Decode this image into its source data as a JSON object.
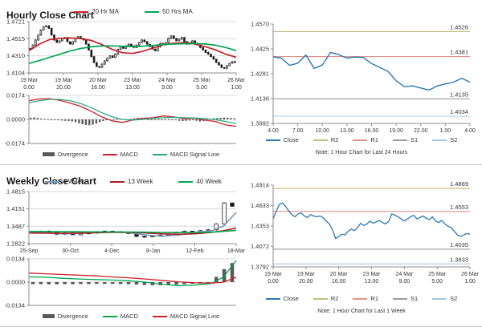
{
  "legends": {
    "hourly_ma": [
      {
        "label": "20 Hr MA",
        "color": "#cc2027",
        "shape": "line"
      },
      {
        "label": "50 Hrs MA",
        "color": "#00a651",
        "shape": "line"
      }
    ],
    "hourly_macd": [
      {
        "label": "Divergence",
        "color": "#595959",
        "shape": "bar"
      },
      {
        "label": "MACD",
        "color": "#cc2027",
        "shape": "line"
      },
      {
        "label": "MACD Signal Line",
        "color": "#2aa885",
        "shape": "line"
      }
    ],
    "hourly_pivot": [
      {
        "label": "Close",
        "color": "#2878b8",
        "shape": "line"
      },
      {
        "label": "R2",
        "color": "#c5b97b",
        "shape": "line"
      },
      {
        "label": "R1",
        "color": "#e0938a",
        "shape": "line"
      },
      {
        "label": "S1",
        "color": "#9b9b9b",
        "shape": "line"
      },
      {
        "label": "S2",
        "color": "#a3c7dd",
        "shape": "line"
      }
    ],
    "weekly_ma": [
      {
        "label": "4 Week",
        "color": "#7b9cc0",
        "shape": "line"
      },
      {
        "label": "13 Week",
        "color": "#b01b20",
        "shape": "line"
      },
      {
        "label": "40 Week",
        "color": "#00a651",
        "shape": "line"
      }
    ],
    "weekly_macd": [
      {
        "label": "Divergence",
        "color": "#595959",
        "shape": "bar"
      },
      {
        "label": "MACD",
        "color": "#00a651",
        "shape": "line"
      },
      {
        "label": "MACD Signal Line",
        "color": "#cc2027",
        "shape": "line"
      }
    ],
    "weekly_pivot": [
      {
        "label": "Close",
        "color": "#2878b8",
        "shape": "line"
      },
      {
        "label": "R2",
        "color": "#c5b97b",
        "shape": "line"
      },
      {
        "label": "R1",
        "color": "#e0938a",
        "shape": "line"
      },
      {
        "label": "S1",
        "color": "#9b9b9b",
        "shape": "line"
      },
      {
        "label": "S2",
        "color": "#a3c7dd",
        "shape": "line"
      }
    ]
  },
  "chart_data": [
    {
      "id": "hourly-price",
      "type": "candlestick",
      "title": "Hourly Close Chart",
      "xlabel": "",
      "ylabel": "",
      "ylim": [
        1.4104,
        1.4721
      ],
      "yticks": [
        "1.4721",
        "1.4515",
        "1.4310",
        "1.4104"
      ],
      "grid": true,
      "xticklabels": [
        [
          "19 Mar",
          "0.00"
        ],
        [
          "19 Mar",
          "20.00"
        ],
        [
          "20 Mar",
          "16.00"
        ],
        [
          "23 Mar",
          "13.00"
        ],
        [
          "24 Mar",
          "9.00"
        ],
        [
          "25 Mar",
          "5.00"
        ],
        [
          "26 Mar",
          "1.00"
        ]
      ],
      "candle_closes": [
        1.44,
        1.444,
        1.45,
        1.456,
        1.462,
        1.466,
        1.467,
        1.464,
        1.456,
        1.45,
        1.447,
        1.449,
        1.452,
        1.453,
        1.448,
        1.445,
        1.448,
        1.452,
        1.454,
        1.452,
        1.45,
        1.445,
        1.438,
        1.43,
        1.423,
        1.418,
        1.417,
        1.421,
        1.425,
        1.428,
        1.431,
        1.429,
        1.433,
        1.439,
        1.442,
        1.44,
        1.443,
        1.445,
        1.443,
        1.441,
        1.444,
        1.447,
        1.45,
        1.448,
        1.445,
        1.442,
        1.439,
        1.437,
        1.442,
        1.446,
        1.444,
        1.447,
        1.452,
        1.455,
        1.452,
        1.449,
        1.451,
        1.453,
        1.448,
        1.445,
        1.447,
        1.449,
        1.446,
        1.444,
        1.441,
        1.438,
        1.435,
        1.433,
        1.43,
        1.427,
        1.423,
        1.42,
        1.417,
        1.416,
        1.419,
        1.422,
        1.424,
        1.423
      ],
      "series": [
        {
          "name": "20 Hr MA",
          "color": "#cc2027",
          "w": 1.7,
          "x": [
            0,
            0.05,
            0.1,
            0.15,
            0.2,
            0.25,
            0.3,
            0.35,
            0.4,
            0.45,
            0.5,
            0.55,
            0.6,
            0.65,
            0.7,
            0.75,
            0.8,
            0.85,
            0.9,
            0.95,
            1
          ],
          "y": [
            1.437,
            1.445,
            1.4505,
            1.452,
            1.4525,
            1.4518,
            1.4495,
            1.4448,
            1.439,
            1.4348,
            1.4338,
            1.4365,
            1.4405,
            1.4445,
            1.4462,
            1.4468,
            1.4452,
            1.442,
            1.4382,
            1.433,
            1.4292
          ]
        },
        {
          "name": "50 Hrs MA",
          "color": "#00a651",
          "w": 1.7,
          "x": [
            0,
            0.05,
            0.1,
            0.15,
            0.2,
            0.25,
            0.3,
            0.35,
            0.4,
            0.45,
            0.5,
            0.55,
            0.6,
            0.65,
            0.7,
            0.75,
            0.8,
            0.85,
            0.9,
            0.95,
            1
          ],
          "y": [
            1.4218,
            1.4252,
            1.4292,
            1.433,
            1.4368,
            1.4398,
            1.4418,
            1.4428,
            1.443,
            1.4425,
            1.442,
            1.4426,
            1.4436,
            1.4446,
            1.4452,
            1.4456,
            1.4458,
            1.4452,
            1.4438,
            1.441,
            1.4372
          ]
        }
      ]
    },
    {
      "id": "hourly-macd",
      "type": "macd",
      "ylim": [
        -0.0174,
        0.0174
      ],
      "yticks": [
        "0.0174",
        "0.0000",
        "-0.0174"
      ],
      "grid": true,
      "bar_color": "#595959",
      "bars": [
        0.0012,
        0.0015,
        0.001,
        0.0006,
        0.0004,
        0.0002,
        -0.0002,
        -0.0004,
        -0.0006,
        -0.0008,
        -0.001,
        -0.0012,
        -0.0015,
        -0.002,
        -0.0028,
        -0.0035,
        -0.004,
        -0.0042,
        -0.0038,
        -0.003,
        -0.002,
        -0.0012,
        -0.0006,
        -0.0002,
        0.0002,
        0.0004,
        0.0003,
        0.0001,
        -0.0002,
        0.0004,
        0.0008,
        0.0012,
        0.001,
        0.0006,
        0.0002,
        -0.0002,
        -0.0004,
        -0.0006,
        -0.0004,
        -0.0002,
        0.0,
        -0.0002,
        -0.0006,
        -0.001,
        -0.0012,
        -0.001,
        -0.0008,
        -0.0006,
        -0.001,
        -0.0015,
        -0.0012,
        -0.0008,
        0.0004,
        0.0008,
        0.001,
        0.0012,
        0.0014,
        0.0012,
        0.001,
        0.0008
      ],
      "series": [
        {
          "name": "MACD",
          "color": "#cc2027",
          "w": 1.3,
          "x": [
            0,
            0.05,
            0.1,
            0.15,
            0.2,
            0.25,
            0.3,
            0.35,
            0.4,
            0.45,
            0.5,
            0.55,
            0.6,
            0.65,
            0.7,
            0.75,
            0.8,
            0.85,
            0.9,
            0.95,
            1
          ],
          "y": [
            0.0135,
            0.0148,
            0.015,
            0.0138,
            0.0118,
            0.0095,
            0.006,
            0.002,
            -0.001,
            -0.0022,
            -0.0005,
            0.0008,
            0.0012,
            0.0025,
            0.0018,
            0.0005,
            0.0008,
            -0.0005,
            -0.0015,
            -0.004,
            -0.005
          ]
        },
        {
          "name": "MACD Signal Line",
          "color": "#2aa885",
          "w": 1.3,
          "x": [
            0,
            0.05,
            0.1,
            0.15,
            0.2,
            0.25,
            0.3,
            0.35,
            0.4,
            0.45,
            0.5,
            0.55,
            0.6,
            0.65,
            0.7,
            0.75,
            0.8,
            0.85,
            0.9,
            0.95,
            1
          ],
          "y": [
            0.012,
            0.0135,
            0.0145,
            0.0145,
            0.0135,
            0.0115,
            0.0085,
            0.005,
            0.002,
            0.0,
            -0.0005,
            0.0,
            0.0008,
            0.0012,
            0.0015,
            0.0012,
            0.001,
            0.0005,
            -0.0002,
            -0.0015,
            -0.003
          ]
        }
      ]
    },
    {
      "id": "hourly-pivot",
      "type": "line",
      "note": "Note: 1 Hour Chart for Last 24 Hours",
      "ylim": [
        1.3992,
        1.457
      ],
      "yticks": [
        "1.4570",
        "1.4425",
        "1.4281",
        "1.4136",
        "1.3992"
      ],
      "grid": false,
      "xticklabels": [
        "4.00",
        "7.00",
        "10.00",
        "13.00",
        "16.00",
        "19.00",
        "22.00",
        "1.00",
        "4.00"
      ],
      "levels": [
        {
          "name": "R2",
          "label": "1.4526",
          "value": 1.4526,
          "color": "#c5b97b"
        },
        {
          "name": "R1",
          "label": "1.4381",
          "value": 1.4381,
          "color": "#e0938a"
        },
        {
          "name": "S1",
          "label": "1.4135",
          "value": 1.4135,
          "color": "#9b9b9b"
        },
        {
          "name": "S2",
          "label": "1.4034",
          "value": 1.4034,
          "color": "#a3c7dd"
        }
      ],
      "series": [
        {
          "name": "Close",
          "color": "#2878b8",
          "w": 1.4,
          "y": [
            1.438,
            1.4372,
            1.433,
            1.4342,
            1.439,
            1.4312,
            1.4332,
            1.4405,
            1.4392,
            1.4372,
            1.4378,
            1.4375,
            1.434,
            1.4318,
            1.4295,
            1.424,
            1.4206,
            1.421,
            1.4198,
            1.4186,
            1.421,
            1.4222,
            1.4232,
            1.4255,
            1.4232
          ]
        }
      ]
    },
    {
      "id": "weekly-price",
      "type": "candlestick",
      "title": "Weekly Close Chart",
      "xlabel": "",
      "ylabel": "",
      "ylim": [
        1.2822,
        1.4815
      ],
      "yticks": [
        "1.4815",
        "1.4151",
        "1.3487",
        "1.2822"
      ],
      "grid": true,
      "xticklabels": [
        "25-Sep",
        "30-Oct",
        "4-Dec",
        "8-Jan",
        "12-Feb",
        "18-Mar"
      ],
      "candle_closes": [
        1.327,
        1.33,
        1.325,
        1.318,
        1.323,
        1.316,
        1.321,
        1.323,
        1.328,
        1.33,
        1.328,
        1.325,
        1.321,
        1.31,
        1.308,
        1.311,
        1.315,
        1.319,
        1.326,
        1.33,
        1.328,
        1.332,
        1.335,
        1.358,
        1.438,
        1.425
      ],
      "series": [
        {
          "name": "4 Week",
          "color": "#7b9cc0",
          "w": 1.6,
          "x": [
            0,
            0.08,
            0.16,
            0.24,
            0.32,
            0.4,
            0.48,
            0.56,
            0.64,
            0.72,
            0.8,
            0.88,
            0.94,
            1
          ],
          "y": [
            1.3265,
            1.324,
            1.3195,
            1.321,
            1.3255,
            1.327,
            1.3245,
            1.3155,
            1.3105,
            1.315,
            1.3255,
            1.331,
            1.35,
            1.402
          ]
        },
        {
          "name": "13 Week",
          "color": "#b01b20",
          "w": 1.6,
          "x": [
            0,
            0.08,
            0.16,
            0.24,
            0.32,
            0.4,
            0.48,
            0.56,
            0.64,
            0.72,
            0.8,
            0.88,
            0.94,
            1
          ],
          "y": [
            1.323,
            1.3225,
            1.322,
            1.3225,
            1.324,
            1.3255,
            1.325,
            1.323,
            1.32,
            1.318,
            1.32,
            1.325,
            1.332,
            1.342
          ]
        },
        {
          "name": "40 Week",
          "color": "#00a651",
          "w": 1.6,
          "x": [
            0,
            0.08,
            0.16,
            0.24,
            0.32,
            0.4,
            0.48,
            0.56,
            0.64,
            0.72,
            0.8,
            0.88,
            0.94,
            1
          ],
          "y": [
            1.329,
            1.3285,
            1.328,
            1.3275,
            1.327,
            1.327,
            1.3265,
            1.326,
            1.325,
            1.3245,
            1.325,
            1.326,
            1.329,
            1.333
          ]
        }
      ]
    },
    {
      "id": "weekly-macd",
      "type": "macd",
      "ylim": [
        -0.0134,
        0.0134
      ],
      "yticks": [
        "0.0134",
        "0.0000",
        "-0.0134"
      ],
      "grid": true,
      "bar_color": "#595959",
      "bars": [
        -0.0012,
        -0.0012,
        -0.0013,
        -0.0013,
        -0.0012,
        -0.0012,
        -0.0011,
        -0.0011,
        -0.001,
        -0.001,
        -0.001,
        -0.0011,
        -0.0012,
        -0.0014,
        -0.0016,
        -0.0018,
        -0.0018,
        -0.0016,
        -0.0014,
        -0.0012,
        -0.001,
        -0.0008,
        -0.0004,
        0.003,
        0.0075,
        0.011
      ],
      "series": [
        {
          "name": "MACD",
          "color": "#00a651",
          "w": 1.3,
          "x": [
            0,
            0.08,
            0.16,
            0.24,
            0.32,
            0.4,
            0.48,
            0.56,
            0.64,
            0.72,
            0.8,
            0.88,
            0.94,
            1
          ],
          "y": [
            0.003,
            0.0028,
            0.0022,
            0.0018,
            0.0015,
            0.0012,
            0.0008,
            0.0,
            -0.0012,
            -0.002,
            -0.0018,
            -0.0008,
            0.003,
            0.0125
          ]
        },
        {
          "name": "MACD Signal Line",
          "color": "#cc2027",
          "w": 1.3,
          "x": [
            0,
            0.08,
            0.16,
            0.24,
            0.32,
            0.4,
            0.48,
            0.56,
            0.64,
            0.72,
            0.8,
            0.88,
            0.94,
            1
          ],
          "y": [
            0.0052,
            0.0048,
            0.0044,
            0.004,
            0.0036,
            0.003,
            0.0025,
            0.0018,
            0.001,
            0.0002,
            -0.0004,
            -0.0006,
            0.0,
            0.0028
          ]
        }
      ]
    },
    {
      "id": "weekly-pivot",
      "type": "line",
      "note": "Note: 1 Hour Chart for Last 1 Week",
      "ylim": [
        1.3792,
        1.4914
      ],
      "yticks": [
        "1.4914",
        "1.4633",
        "1.4353",
        "1.4072",
        "1.3792"
      ],
      "grid": false,
      "xticklabels": [
        [
          "19 Mar",
          "0.00"
        ],
        [
          "19 Mar",
          "20.00"
        ],
        [
          "20 Mar",
          "16.00"
        ],
        [
          "23 Mar",
          "13.00"
        ],
        [
          "24 Mar",
          "9.00"
        ],
        [
          "25 Mar",
          "5.00"
        ],
        [
          "26 Mar",
          "1.00"
        ]
      ],
      "levels": [
        {
          "name": "R2",
          "label": "1.4869",
          "value": 1.4869,
          "color": "#c5b97b"
        },
        {
          "name": "R1",
          "label": "1.4553",
          "value": 1.4553,
          "color": "#e0938a"
        },
        {
          "name": "S1",
          "label": "1.4035",
          "value": 1.4035,
          "color": "#9b9b9b"
        },
        {
          "name": "S2",
          "label": "1.3833",
          "value": 1.3833,
          "color": "#a3c7dd"
        }
      ],
      "series": [
        {
          "name": "Close",
          "color": "#2878b8",
          "w": 1.3,
          "y": [
            1.445,
            1.456,
            1.465,
            1.467,
            1.462,
            1.456,
            1.451,
            1.448,
            1.452,
            1.453,
            1.449,
            1.447,
            1.451,
            1.449,
            1.448,
            1.449,
            1.447,
            1.442,
            1.438,
            1.43,
            1.418,
            1.421,
            1.424,
            1.423,
            1.428,
            1.431,
            1.429,
            1.433,
            1.439,
            1.436,
            1.438,
            1.442,
            1.439,
            1.441,
            1.443,
            1.44,
            1.438,
            1.442,
            1.452,
            1.45,
            1.448,
            1.445,
            1.442,
            1.445,
            1.448,
            1.45,
            1.445,
            1.447,
            1.449,
            1.446,
            1.444,
            1.448,
            1.442,
            1.44,
            1.443,
            1.438,
            1.435,
            1.433,
            1.428,
            1.423,
            1.421,
            1.423,
            1.425,
            1.424
          ]
        }
      ]
    }
  ]
}
